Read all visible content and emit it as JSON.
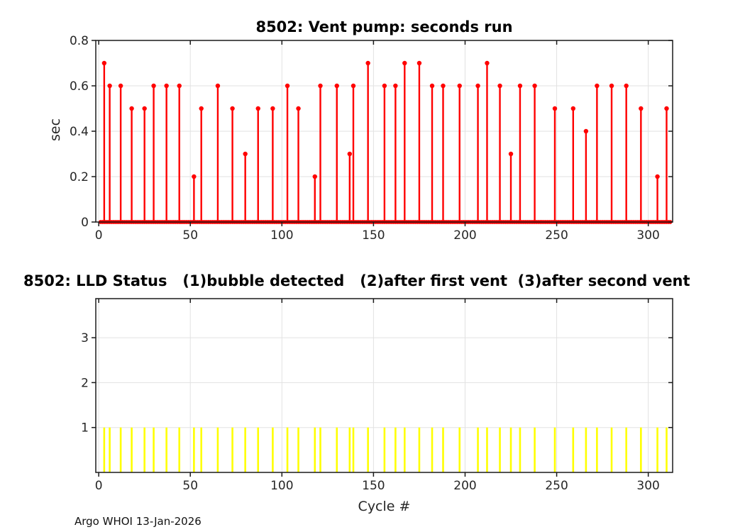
{
  "figure": {
    "footer": "Argo WHOI 13-Jan-2026"
  },
  "colors": {
    "stem": "#ff0000",
    "bar": "#ffff00",
    "grid": "#e2e2e2",
    "axis": "#1a1a1a",
    "tick_label": "#262626"
  },
  "chart_data": [
    {
      "type": "stem",
      "title": "8502: Vent pump: seconds run",
      "xlabel": "",
      "ylabel": "sec",
      "grid": true,
      "legend": "none",
      "xlim": [
        -1.6,
        313.3
      ],
      "ylim": [
        0,
        0.8
      ],
      "xticks": [
        0,
        50,
        100,
        150,
        200,
        250,
        300
      ],
      "yticks": [
        0,
        0.2,
        0.4,
        0.6,
        0.8
      ],
      "series_name": "vent pump seconds run",
      "x": [
        3,
        6,
        12,
        18,
        25,
        30,
        37,
        44,
        52,
        56,
        65,
        73,
        80,
        87,
        95,
        103,
        109,
        118,
        121,
        130,
        137,
        139,
        147,
        156,
        162,
        167,
        175,
        182,
        188,
        197,
        207,
        212,
        219,
        225,
        230,
        238,
        249,
        259,
        266,
        272,
        280,
        288,
        296,
        305,
        310
      ],
      "y": [
        0.7,
        0.6,
        0.6,
        0.5,
        0.5,
        0.6,
        0.6,
        0.6,
        0.2,
        0.5,
        0.6,
        0.5,
        0.3,
        0.5,
        0.5,
        0.6,
        0.5,
        0.2,
        0.6,
        0.6,
        0.3,
        0.6,
        0.7,
        0.6,
        0.6,
        0.7,
        0.7,
        0.6,
        0.6,
        0.6,
        0.6,
        0.7,
        0.6,
        0.3,
        0.6,
        0.6,
        0.5,
        0.5,
        0.4,
        0.6,
        0.6,
        0.6,
        0.5,
        0.2,
        0.5
      ],
      "baseline": {
        "value": 0,
        "cycle_range": [
          1,
          312
        ],
        "note": "all other cycles ran 0 sec - dense red zero markers form a solid line along the x-axis"
      }
    },
    {
      "type": "bar",
      "title": "8502: LLD Status   (1)bubble detected   (2)after first vent  (3)after second vent",
      "xlabel": "Cycle #",
      "ylabel": "",
      "grid": true,
      "legend": "none",
      "xlim": [
        -1.6,
        313.3
      ],
      "ylim": [
        0,
        3.87
      ],
      "xticks": [
        0,
        50,
        100,
        150,
        200,
        250,
        300
      ],
      "yticks": [
        1,
        2,
        3
      ],
      "series_name": "LLD status",
      "x": [
        3,
        6,
        12,
        18,
        25,
        30,
        37,
        44,
        52,
        56,
        65,
        73,
        80,
        87,
        95,
        103,
        109,
        118,
        121,
        130,
        137,
        139,
        147,
        156,
        162,
        167,
        175,
        182,
        188,
        197,
        207,
        212,
        219,
        225,
        230,
        238,
        249,
        259,
        266,
        272,
        280,
        288,
        296,
        305,
        310
      ],
      "y": [
        1,
        1,
        1,
        1,
        1,
        1,
        1,
        1,
        1,
        1,
        1,
        1,
        1,
        1,
        1,
        1,
        1,
        1,
        1,
        1,
        1,
        1,
        1,
        1,
        1,
        1,
        1,
        1,
        1,
        1,
        1,
        1,
        1,
        1,
        1,
        1,
        1,
        1,
        1,
        1,
        1,
        1,
        1,
        1,
        1
      ]
    }
  ]
}
